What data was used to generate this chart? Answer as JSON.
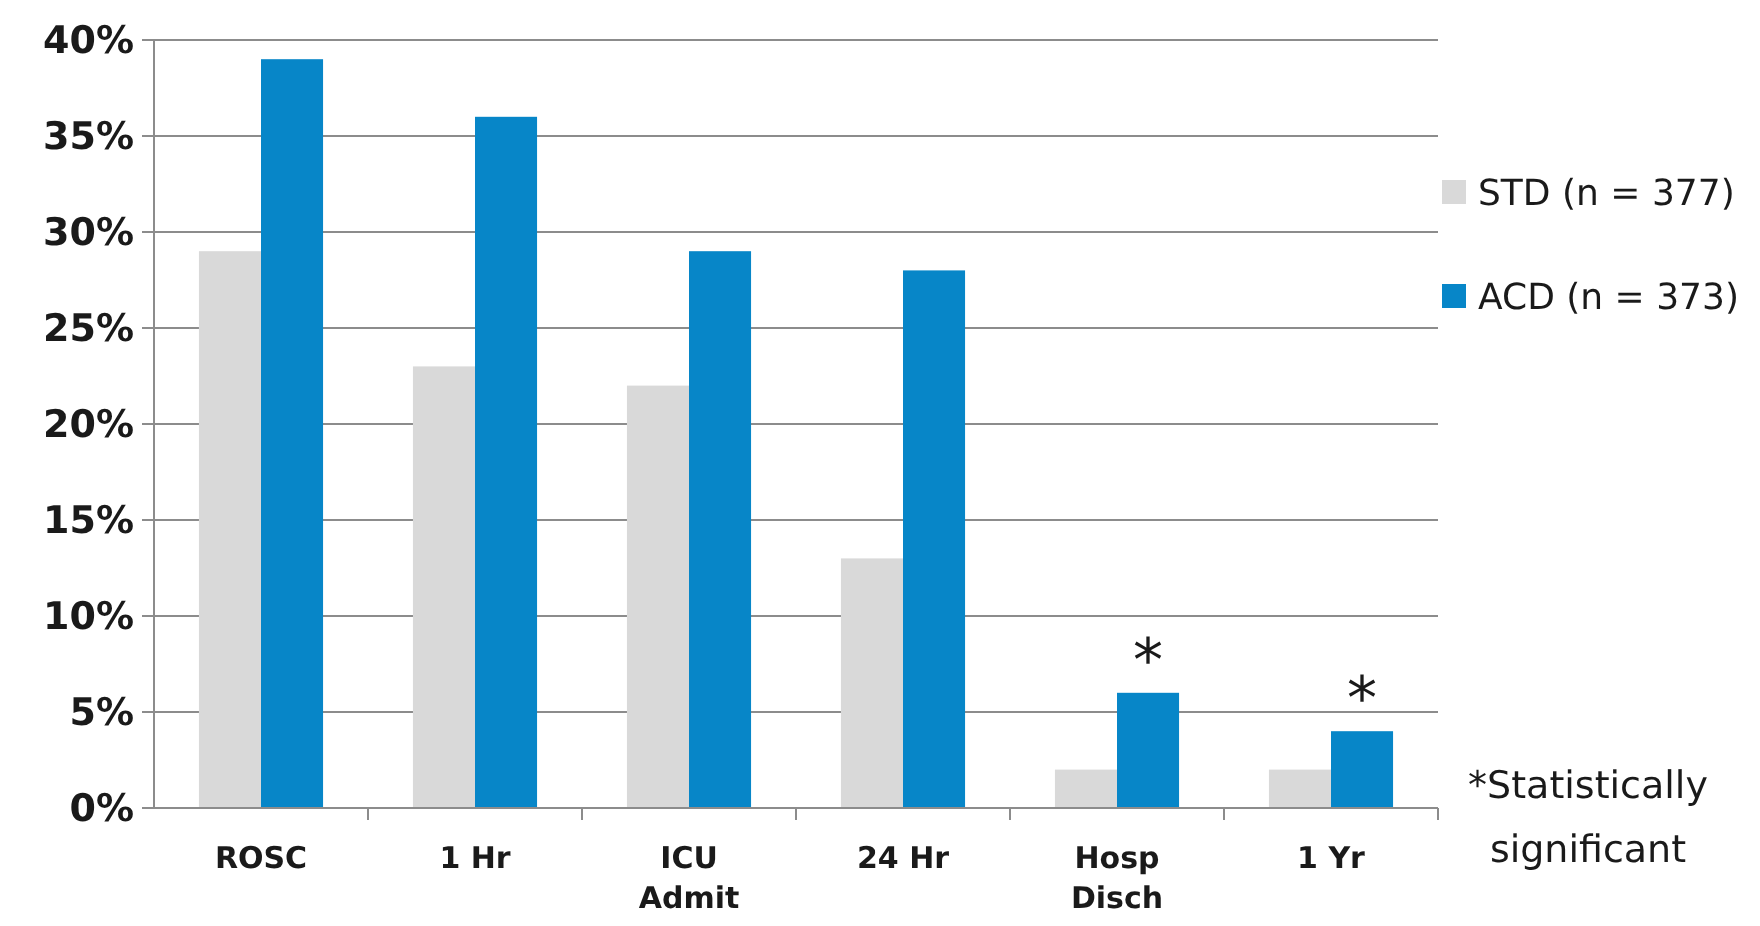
{
  "chart_data": {
    "type": "bar",
    "categories": [
      "ROSC",
      "1 Hr",
      "ICU Admit",
      "24 Hr",
      "Hosp Disch",
      "1 Yr"
    ],
    "series": [
      {
        "name": "STD (n = 377)",
        "color": "#d9d9d9",
        "values": [
          29,
          23,
          22,
          13,
          2,
          2
        ]
      },
      {
        "name": "ACD (n = 373)",
        "color": "#0786c8",
        "values": [
          39,
          36,
          29,
          28,
          6,
          4
        ]
      }
    ],
    "ylim": [
      0,
      40
    ],
    "yticks": [
      {
        "value": 0,
        "label": "0%"
      },
      {
        "value": 5,
        "label": "5%"
      },
      {
        "value": 10,
        "label": "10%"
      },
      {
        "value": 15,
        "label": "15%"
      },
      {
        "value": 20,
        "label": "20%"
      },
      {
        "value": 25,
        "label": "25%"
      },
      {
        "value": 30,
        "label": "30%"
      },
      {
        "value": 35,
        "label": "35%"
      },
      {
        "value": 40,
        "label": "40%"
      }
    ],
    "grid": "y",
    "legend": "right",
    "annotations": [
      {
        "text": "*",
        "x": "Hosp Disch",
        "y": 6
      },
      {
        "text": "*",
        "x": "1 Yr",
        "y": 4
      },
      "*Statistically significant"
    ]
  }
}
